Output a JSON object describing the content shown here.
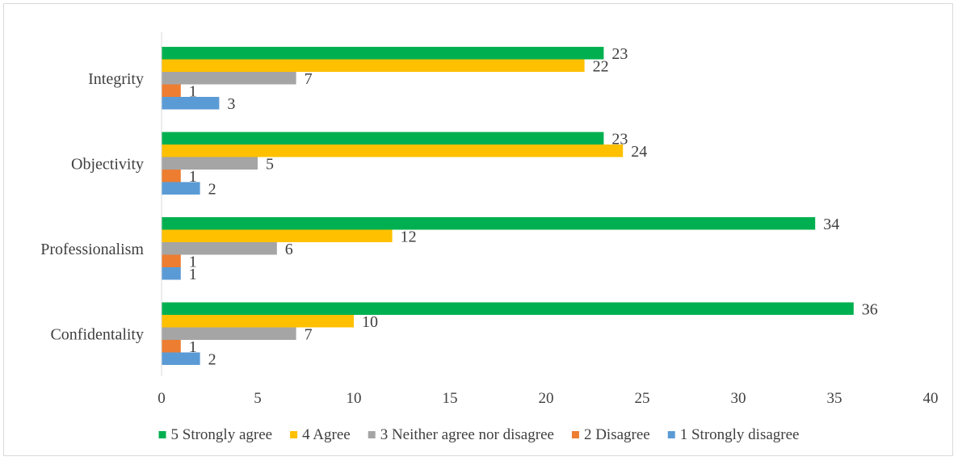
{
  "chart_data": {
    "type": "bar",
    "orientation": "horizontal",
    "categories": [
      "Integrity",
      "Objectivity",
      "Professionalism",
      "Confidentality"
    ],
    "series": [
      {
        "name": "5 Strongly agree",
        "color": "#00b050",
        "values": [
          23,
          23,
          34,
          36
        ]
      },
      {
        "name": "4 Agree",
        "color": "#ffc000",
        "values": [
          22,
          24,
          12,
          10
        ]
      },
      {
        "name": "3 Neither agree nor disagree",
        "color": "#a5a5a5",
        "values": [
          7,
          5,
          6,
          7
        ]
      },
      {
        "name": "2 Disagree",
        "color": "#ed7d31",
        "values": [
          1,
          1,
          1,
          1
        ]
      },
      {
        "name": "1 Strongly disagree",
        "color": "#5b9bd5",
        "values": [
          3,
          2,
          1,
          2
        ]
      }
    ],
    "xlim": [
      0,
      40
    ],
    "xticks": [
      0,
      5,
      10,
      15,
      20,
      25,
      30,
      35,
      40
    ],
    "grid": false,
    "legend_position": "bottom",
    "data_labels": true
  }
}
